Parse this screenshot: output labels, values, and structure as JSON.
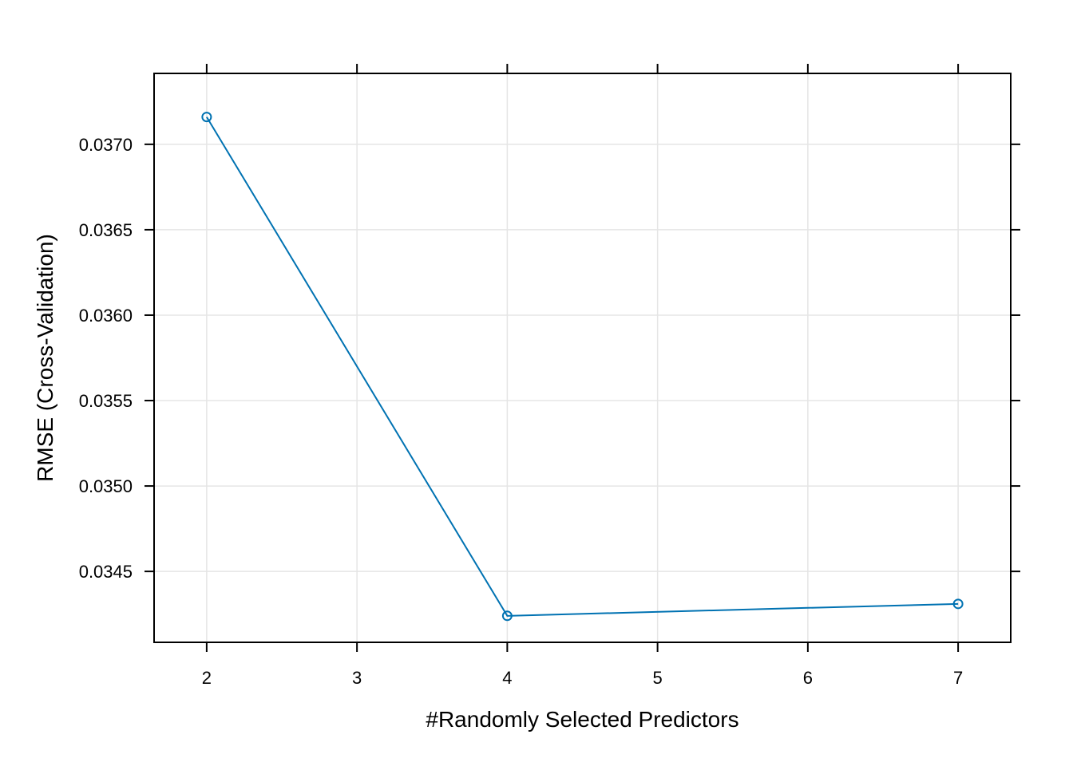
{
  "chart_data": {
    "type": "line",
    "title": "",
    "xlabel": "#Randomly Selected Predictors",
    "ylabel": "RMSE (Cross-Validation)",
    "xlim": [
      1.65,
      7.35
    ],
    "ylim": [
      0.034085,
      0.037415
    ],
    "x_ticks": [
      2,
      3,
      4,
      5,
      6,
      7
    ],
    "x_tick_labels": [
      "2",
      "3",
      "4",
      "5",
      "6",
      "7"
    ],
    "y_ticks": [
      0.0345,
      0.035,
      0.0355,
      0.036,
      0.0365,
      0.037
    ],
    "y_tick_labels": [
      "0.0345",
      "0.0350",
      "0.0355",
      "0.0360",
      "0.0365",
      "0.0370"
    ],
    "grid": true,
    "series": [
      {
        "x": [
          2,
          4,
          7
        ],
        "values": [
          0.03716,
          0.03424,
          0.03431
        ],
        "color": "#0072B2",
        "marker": "open-circle"
      }
    ],
    "colors": {
      "line": "#0072B2",
      "grid": "#E5E5E5",
      "frame": "#000000"
    }
  }
}
